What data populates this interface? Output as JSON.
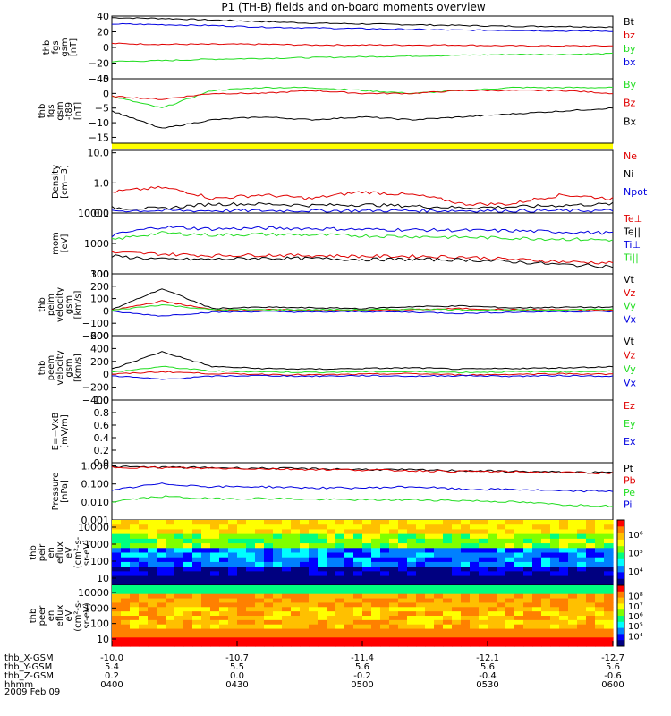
{
  "title": "P1 (TH-B) fields and on-board moments overview",
  "colors": {
    "black": "#000000",
    "red": "#e00000",
    "green": "#22dd22",
    "blue": "#0000e0",
    "yellow": "#ffff00"
  },
  "time_axis": {
    "ticks": [
      "0400",
      "0430",
      "0500",
      "0530",
      "0600"
    ],
    "rows": [
      {
        "label": "thb_X-GSM",
        "values": [
          "-10.0",
          "-10.7",
          "-11.4",
          "-12.1",
          "-12.7"
        ]
      },
      {
        "label": "thb_Y-GSM",
        "values": [
          "5.4",
          "5.5",
          "5.6",
          "5.6",
          "5.6"
        ]
      },
      {
        "label": "thb_Z-GSM",
        "values": [
          "0.2",
          "0.0",
          "-0.2",
          "-0.4",
          "-0.6"
        ]
      },
      {
        "label": "hhmm",
        "values": [
          "0400",
          "0430",
          "0500",
          "0530",
          "0600"
        ]
      }
    ],
    "date": "2009 Feb 09"
  },
  "chart_data": [
    {
      "id": "p1",
      "type": "line",
      "ylabel": [
        "thb",
        "fgs",
        "gsm",
        "[nT]"
      ],
      "ylim": [
        -40,
        40
      ],
      "yticks": [
        "40",
        "20",
        "0",
        "−20",
        "−40"
      ],
      "tick_values": [
        40,
        20,
        0,
        -20,
        -40
      ],
      "legend": [
        {
          "name": "Bt",
          "color": "#000000"
        },
        {
          "name": "bz",
          "color": "#e00000"
        },
        {
          "name": "by",
          "color": "#22dd22"
        },
        {
          "name": "bx",
          "color": "#0000e0"
        }
      ],
      "series": [
        {
          "name": "Bt",
          "color": "#000000",
          "values": [
            38,
            37,
            35,
            33,
            31,
            30,
            29,
            28,
            27,
            27,
            26
          ]
        },
        {
          "name": "bz",
          "color": "#e00000",
          "values": [
            5,
            4,
            4,
            4,
            3,
            3,
            3,
            3,
            2,
            2,
            2
          ]
        },
        {
          "name": "by",
          "color": "#22dd22",
          "values": [
            -18,
            -17,
            -15,
            -14,
            -13,
            -12,
            -11,
            -10,
            -9,
            -9,
            -8
          ]
        },
        {
          "name": "bx",
          "color": "#0000e0",
          "values": [
            30,
            29,
            28,
            26,
            25,
            24,
            23,
            22,
            22,
            21,
            21
          ]
        }
      ]
    },
    {
      "id": "p2",
      "type": "line",
      "ylabel": [
        "thb",
        "fgs",
        "gsm",
        "-t89",
        "[nT]"
      ],
      "ylim": [
        -17,
        5
      ],
      "yticks": [
        "5",
        "0",
        "−5",
        "−10",
        "−15"
      ],
      "tick_values": [
        5,
        0,
        -5,
        -10,
        -15
      ],
      "legend": [
        {
          "name": "By",
          "color": "#22dd22"
        },
        {
          "name": "Bz",
          "color": "#e00000"
        },
        {
          "name": "Bx",
          "color": "#000000"
        }
      ],
      "series": [
        {
          "name": "By",
          "color": "#22dd22",
          "values": [
            -1,
            -5,
            1,
            2,
            2,
            1,
            0,
            1,
            2,
            2,
            2
          ]
        },
        {
          "name": "Bz",
          "color": "#e00000",
          "values": [
            -1,
            -2,
            0,
            0,
            1,
            0,
            0,
            1,
            1,
            1,
            0
          ]
        },
        {
          "name": "Bx",
          "color": "#000000",
          "values": [
            -6,
            -12,
            -9,
            -8,
            -9,
            -8,
            -9,
            -8,
            -7,
            -6,
            -5
          ]
        }
      ]
    },
    {
      "id": "p3",
      "type": "line",
      "ylabel": [
        "Density",
        "[cm−3]"
      ],
      "ylim": [
        0.1,
        12
      ],
      "log": true,
      "yticks": [
        "10.0",
        "1.0",
        "0.1"
      ],
      "tick_values": [
        10,
        1,
        0.1
      ],
      "legend": [
        {
          "name": "Ne",
          "color": "#e00000"
        },
        {
          "name": "Ni",
          "color": "#000000"
        },
        {
          "name": "Npot",
          "color": "#0000e0"
        }
      ],
      "series": [
        {
          "name": "Ne",
          "color": "#e00000",
          "values": [
            0.5,
            0.7,
            0.3,
            0.4,
            0.3,
            0.5,
            0.4,
            0.2,
            0.2,
            0.4,
            0.3
          ]
        },
        {
          "name": "Ni",
          "color": "#000000",
          "values": [
            0.15,
            0.14,
            0.2,
            0.2,
            0.18,
            0.19,
            0.17,
            0.15,
            0.16,
            0.18,
            0.2
          ]
        },
        {
          "name": "Npot",
          "color": "#0000e0",
          "values": [
            0.12,
            0.12,
            0.12,
            0.12,
            0.12,
            0.12,
            0.12,
            0.12,
            0.12,
            0.12,
            0.12
          ]
        }
      ]
    },
    {
      "id": "p4",
      "type": "line",
      "ylabel": [
        "mom",
        "[eV]"
      ],
      "ylim": [
        100,
        10000
      ],
      "log": true,
      "yticks": [
        "10000",
        "1000",
        "100"
      ],
      "tick_values": [
        10000,
        1000,
        100
      ],
      "legend": [
        {
          "name": "Te⊥",
          "color": "#e00000"
        },
        {
          "name": "Te||",
          "color": "#000000"
        },
        {
          "name": "Ti⊥",
          "color": "#0000e0"
        },
        {
          "name": "Ti||",
          "color": "#22dd22"
        }
      ],
      "series": [
        {
          "name": "Ti⊥",
          "color": "#0000e0",
          "values": [
            1800,
            3500,
            3000,
            3200,
            3100,
            2900,
            2800,
            2700,
            2600,
            2400,
            2200
          ]
        },
        {
          "name": "Ti||",
          "color": "#22dd22",
          "values": [
            1300,
            2200,
            1900,
            2000,
            1900,
            1800,
            1700,
            1600,
            1500,
            1400,
            1300
          ]
        },
        {
          "name": "Te⊥",
          "color": "#e00000",
          "values": [
            500,
            450,
            400,
            420,
            400,
            380,
            380,
            360,
            300,
            250,
            230
          ]
        },
        {
          "name": "Te||",
          "color": "#000000",
          "values": [
            380,
            300,
            300,
            330,
            320,
            300,
            300,
            290,
            250,
            200,
            180
          ]
        }
      ]
    },
    {
      "id": "p5",
      "type": "line",
      "ylabel": [
        "thb",
        "peim",
        "velocity",
        "gsm",
        "[km/s]"
      ],
      "ylim": [
        -200,
        300
      ],
      "yticks": [
        "300",
        "200",
        "100",
        "0",
        "−100",
        "−200"
      ],
      "tick_values": [
        300,
        200,
        100,
        0,
        -100,
        -200
      ],
      "legend": [
        {
          "name": "Vt",
          "color": "#000000"
        },
        {
          "name": "Vz",
          "color": "#e00000"
        },
        {
          "name": "Vy",
          "color": "#22dd22"
        },
        {
          "name": "Vx",
          "color": "#0000e0"
        }
      ],
      "series": [
        {
          "name": "Vt",
          "color": "#000000",
          "values": [
            10,
            180,
            20,
            30,
            25,
            20,
            35,
            40,
            25,
            30,
            30
          ]
        },
        {
          "name": "Vz",
          "color": "#e00000",
          "values": [
            5,
            80,
            10,
            10,
            5,
            5,
            10,
            20,
            10,
            10,
            5
          ]
        },
        {
          "name": "Vy",
          "color": "#22dd22",
          "values": [
            5,
            50,
            10,
            10,
            10,
            10,
            15,
            10,
            5,
            10,
            15
          ]
        },
        {
          "name": "Vx",
          "color": "#0000e0",
          "values": [
            -5,
            -40,
            -10,
            -5,
            -10,
            -5,
            -10,
            -20,
            -10,
            -5,
            -5
          ]
        }
      ]
    },
    {
      "id": "p6",
      "type": "line",
      "ylabel": [
        "thb",
        "peem",
        "velocity",
        "gsm",
        "[km/s]"
      ],
      "ylim": [
        -400,
        600
      ],
      "yticks": [
        "600",
        "400",
        "200",
        "0",
        "−200",
        "−400"
      ],
      "tick_values": [
        600,
        400,
        200,
        0,
        -200,
        -400
      ],
      "legend": [
        {
          "name": "Vt",
          "color": "#000000"
        },
        {
          "name": "Vz",
          "color": "#e00000"
        },
        {
          "name": "Vy",
          "color": "#22dd22"
        },
        {
          "name": "Vx",
          "color": "#0000e0"
        }
      ],
      "series": [
        {
          "name": "Vt",
          "color": "#000000",
          "values": [
            80,
            350,
            120,
            90,
            80,
            90,
            100,
            80,
            90,
            100,
            120
          ]
        },
        {
          "name": "Vy",
          "color": "#22dd22",
          "values": [
            30,
            120,
            50,
            40,
            30,
            40,
            40,
            30,
            40,
            40,
            50
          ]
        },
        {
          "name": "Vz",
          "color": "#e00000",
          "values": [
            0,
            40,
            10,
            0,
            -10,
            0,
            10,
            -10,
            0,
            10,
            0
          ]
        },
        {
          "name": "Vx",
          "color": "#0000e0",
          "values": [
            -20,
            -80,
            -30,
            -20,
            -30,
            -20,
            -30,
            -20,
            -30,
            -20,
            -30
          ]
        }
      ]
    },
    {
      "id": "p7",
      "type": "line",
      "ylabel": [
        "E=−VxB",
        "[mV/m]"
      ],
      "ylim": [
        0,
        1
      ],
      "yticks": [
        "1.0",
        "0.8",
        "0.6",
        "0.4",
        "0.2",
        "0.0"
      ],
      "tick_values": [
        1,
        0.8,
        0.6,
        0.4,
        0.2,
        0
      ],
      "legend": [
        {
          "name": "Ez",
          "color": "#e00000"
        },
        {
          "name": "Ey",
          "color": "#22dd22"
        },
        {
          "name": "Ex",
          "color": "#0000e0"
        }
      ],
      "series": []
    },
    {
      "id": "p8",
      "type": "line",
      "ylabel": [
        "Pressure",
        "[nPa]"
      ],
      "ylim": [
        0.001,
        1.5
      ],
      "log": true,
      "yticks": [
        "1.000",
        "0.100",
        "0.010",
        "0.001"
      ],
      "tick_values": [
        1,
        0.1,
        0.01,
        0.001
      ],
      "legend": [
        {
          "name": "Pt",
          "color": "#000000"
        },
        {
          "name": "Pb",
          "color": "#e00000"
        },
        {
          "name": "Pe",
          "color": "#22dd22"
        },
        {
          "name": "Pi",
          "color": "#0000e0"
        }
      ],
      "series": [
        {
          "name": "Pt",
          "color": "#000000",
          "values": [
            0.9,
            0.85,
            0.8,
            0.75,
            0.7,
            0.65,
            0.6,
            0.55,
            0.5,
            0.45,
            0.42
          ]
        },
        {
          "name": "Pb",
          "color": "#e00000",
          "values": [
            0.85,
            0.8,
            0.75,
            0.7,
            0.65,
            0.6,
            0.55,
            0.5,
            0.47,
            0.43,
            0.4
          ]
        },
        {
          "name": "Pi",
          "color": "#0000e0",
          "values": [
            0.04,
            0.1,
            0.07,
            0.07,
            0.06,
            0.06,
            0.07,
            0.05,
            0.05,
            0.04,
            0.04
          ]
        },
        {
          "name": "Pe",
          "color": "#22dd22",
          "values": [
            0.01,
            0.02,
            0.015,
            0.016,
            0.014,
            0.013,
            0.013,
            0.012,
            0.01,
            0.007,
            0.006
          ]
        }
      ]
    },
    {
      "id": "p9",
      "type": "heatmap",
      "ylabel": [
        "thb",
        "peir",
        "en",
        "eflux",
        "eV",
        "(cm²-s-",
        "sr-eV)"
      ],
      "yticks": [
        "10000",
        "1000",
        "100",
        "10"
      ],
      "tick_values": [
        10000,
        1000,
        100,
        10
      ],
      "colorbar": {
        "labels": [
          "10⁶",
          "10⁵",
          "10⁴"
        ]
      }
    },
    {
      "id": "p10",
      "type": "heatmap",
      "ylabel": [
        "thb",
        "peer",
        "en",
        "eflux",
        "eV",
        "(cm²-s-",
        "sr-eV)"
      ],
      "yticks": [
        "10000",
        "1000",
        "100",
        "10"
      ],
      "tick_values": [
        10000,
        1000,
        100,
        10
      ],
      "colorbar": {
        "labels": [
          "10⁸",
          "10⁷",
          "10⁶",
          "10⁵",
          "10⁴"
        ]
      }
    }
  ]
}
